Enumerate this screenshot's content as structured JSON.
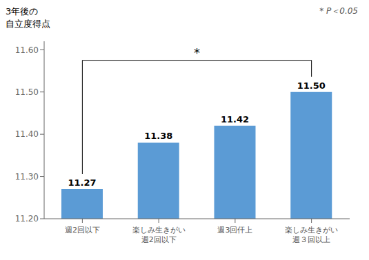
{
  "chart_data": {
    "type": "bar",
    "ylabel": "3年後の\n自立度得点",
    "categories": [
      "週2回以下",
      "楽しみ生きがい\n週2回以下",
      "週3回仠上",
      "楽しみ生きがい\n週３回以上"
    ],
    "values": [
      11.27,
      11.38,
      11.42,
      11.5
    ],
    "value_labels": [
      "11.27",
      "11.38",
      "11.42",
      "11.50"
    ],
    "data_labels": true,
    "color": "#5B9BD5",
    "ylim": [
      11.2,
      11.62
    ],
    "yticks": [
      {
        "value": 11.2,
        "label": "11.20"
      },
      {
        "value": 11.3,
        "label": "11.30"
      },
      {
        "value": 11.4,
        "label": "11.40"
      },
      {
        "value": 11.5,
        "label": "11.50"
      },
      {
        "value": 11.6,
        "label": "11.60"
      }
    ],
    "grid": false,
    "annotations": [
      {
        "text": "*",
        "from": "週2回以下",
        "to": "楽しみ生きがい\n週３回以上",
        "y": 11.575
      },
      {
        "text": "* P＜0.05"
      }
    ]
  }
}
